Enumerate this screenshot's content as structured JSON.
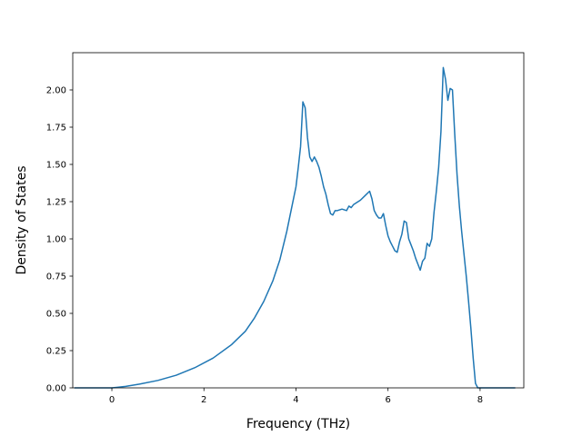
{
  "chart_data": {
    "type": "line",
    "title": "",
    "xlabel": "Frequency (THz)",
    "ylabel": "Density of States",
    "xlim": [
      -0.85,
      8.95
    ],
    "ylim": [
      0.0,
      2.25
    ],
    "xticks": [
      0,
      2,
      4,
      6,
      8
    ],
    "xtick_labels": [
      "0",
      "2",
      "4",
      "6",
      "8"
    ],
    "yticks": [
      0.0,
      0.25,
      0.5,
      0.75,
      1.0,
      1.25,
      1.5,
      1.75,
      2.0
    ],
    "ytick_labels": [
      "0.00",
      "0.25",
      "0.50",
      "0.75",
      "1.00",
      "1.25",
      "1.50",
      "1.75",
      "2.00"
    ],
    "grid": false,
    "legend": "none",
    "line_color": "#1f77b4",
    "series": [
      {
        "x": [
          -0.8,
          -0.4,
          0.0,
          0.3,
          0.6,
          1.0,
          1.4,
          1.8,
          2.2,
          2.6,
          2.9,
          3.1,
          3.3,
          3.5,
          3.65,
          3.8,
          3.9,
          4.0,
          4.05,
          4.1,
          4.15,
          4.2,
          4.25,
          4.3,
          4.35,
          4.4,
          4.45,
          4.5,
          4.55,
          4.6,
          4.65,
          4.7,
          4.75,
          4.8,
          4.85,
          4.9,
          5.0,
          5.1,
          5.15,
          5.2,
          5.25,
          5.3,
          5.35,
          5.4,
          5.5,
          5.6,
          5.65,
          5.7,
          5.75,
          5.8,
          5.85,
          5.9,
          5.95,
          6.0,
          6.05,
          6.1,
          6.15,
          6.2,
          6.25,
          6.3,
          6.35,
          6.4,
          6.45,
          6.5,
          6.55,
          6.6,
          6.65,
          6.7,
          6.75,
          6.8,
          6.85,
          6.9,
          6.95,
          7.0,
          7.05,
          7.1,
          7.15,
          7.2,
          7.25,
          7.3,
          7.35,
          7.4,
          7.45,
          7.5,
          7.55,
          7.6,
          7.65,
          7.7,
          7.75,
          7.8,
          7.85,
          7.9,
          7.95,
          8.0,
          8.3,
          8.75
        ],
        "y": [
          0.0,
          0.0,
          0.0,
          0.01,
          0.025,
          0.05,
          0.085,
          0.135,
          0.2,
          0.29,
          0.38,
          0.47,
          0.58,
          0.72,
          0.86,
          1.05,
          1.2,
          1.35,
          1.48,
          1.62,
          1.92,
          1.88,
          1.68,
          1.55,
          1.52,
          1.55,
          1.52,
          1.48,
          1.42,
          1.35,
          1.3,
          1.23,
          1.17,
          1.16,
          1.19,
          1.19,
          1.2,
          1.19,
          1.22,
          1.21,
          1.23,
          1.24,
          1.25,
          1.26,
          1.29,
          1.32,
          1.27,
          1.19,
          1.16,
          1.14,
          1.14,
          1.17,
          1.09,
          1.02,
          0.98,
          0.95,
          0.92,
          0.91,
          0.98,
          1.03,
          1.12,
          1.11,
          1.0,
          0.96,
          0.92,
          0.87,
          0.83,
          0.79,
          0.85,
          0.87,
          0.97,
          0.95,
          1.0,
          1.18,
          1.32,
          1.48,
          1.72,
          2.15,
          2.07,
          1.93,
          2.01,
          2.0,
          1.7,
          1.43,
          1.22,
          1.05,
          0.9,
          0.75,
          0.58,
          0.4,
          0.2,
          0.03,
          0.0,
          0.0,
          0.0,
          0.0
        ]
      }
    ]
  }
}
